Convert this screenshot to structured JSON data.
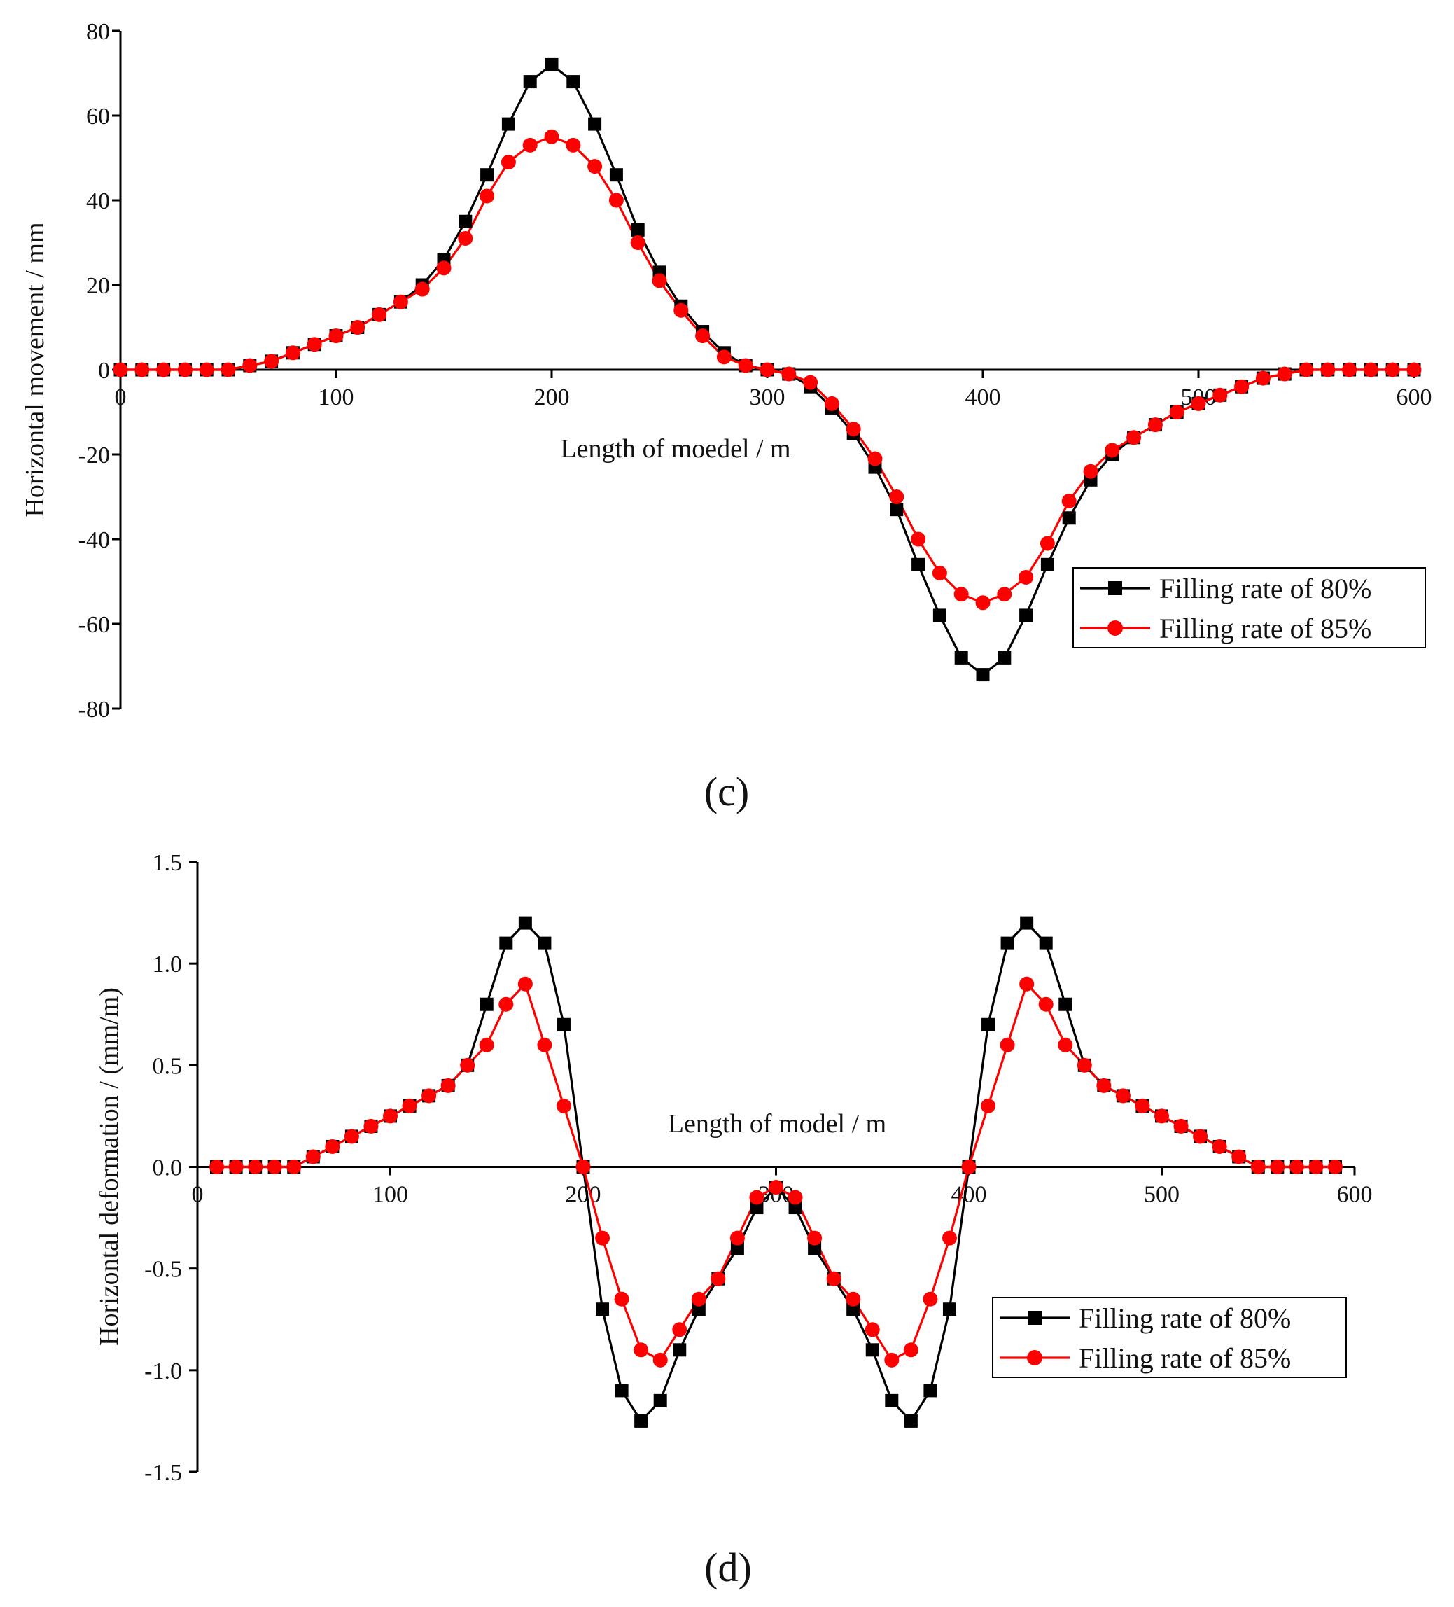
{
  "colors": {
    "series_black": "#000000",
    "series_red": "#ff0000",
    "axis": "#000000"
  },
  "chart_data": [
    {
      "type": "line",
      "panel_label": "(c)",
      "title": "",
      "xlabel": "Length of moedel / m",
      "ylabel": "Horizontal movement / mm",
      "xlim": [
        0,
        600
      ],
      "ylim": [
        -80,
        80
      ],
      "xticks": [
        0,
        100,
        200,
        300,
        400,
        500,
        600
      ],
      "yticks": [
        -80,
        -60,
        -40,
        -20,
        0,
        20,
        40,
        60,
        80
      ],
      "legend_position": "bottom-right",
      "x": [
        0,
        10,
        20,
        30,
        40,
        50,
        60,
        70,
        80,
        90,
        100,
        110,
        120,
        130,
        140,
        150,
        160,
        170,
        180,
        190,
        200,
        210,
        220,
        230,
        240,
        250,
        260,
        270,
        280,
        290,
        300,
        310,
        320,
        330,
        340,
        350,
        360,
        370,
        380,
        390,
        400,
        410,
        420,
        430,
        440,
        450,
        460,
        470,
        480,
        490,
        500,
        510,
        520,
        530,
        540,
        550,
        560,
        570,
        580,
        590,
        600
      ],
      "series": [
        {
          "name": "Filling rate of 80%",
          "marker": "square",
          "color": "#000000",
          "values": [
            0,
            0,
            0,
            0,
            0,
            0,
            1,
            2,
            4,
            6,
            8,
            10,
            13,
            16,
            20,
            26,
            35,
            46,
            58,
            68,
            72,
            68,
            58,
            46,
            33,
            23,
            15,
            9,
            4,
            1,
            0,
            -1,
            -4,
            -9,
            -15,
            -23,
            -33,
            -46,
            -58,
            -68,
            -72,
            -68,
            -58,
            -46,
            -35,
            -26,
            -20,
            -16,
            -13,
            -10,
            -8,
            -6,
            -4,
            -2,
            -1,
            0,
            0,
            0,
            0,
            0,
            0
          ]
        },
        {
          "name": "Filling rate of 85%",
          "marker": "circle",
          "color": "#ff0000",
          "values": [
            0,
            0,
            0,
            0,
            0,
            0,
            1,
            2,
            4,
            6,
            8,
            10,
            13,
            16,
            19,
            24,
            31,
            41,
            49,
            53,
            55,
            53,
            48,
            40,
            30,
            21,
            14,
            8,
            3,
            1,
            0,
            -1,
            -3,
            -8,
            -14,
            -21,
            -30,
            -40,
            -48,
            -53,
            -55,
            -53,
            -49,
            -41,
            -31,
            -24,
            -19,
            -16,
            -13,
            -10,
            -8,
            -6,
            -4,
            -2,
            -1,
            0,
            0,
            0,
            0,
            0,
            0
          ]
        }
      ]
    },
    {
      "type": "line",
      "panel_label": "(d)",
      "title": "",
      "xlabel": "Length of model / m",
      "ylabel": "Horizontal deformation / (mm/m)",
      "xlim": [
        0,
        600
      ],
      "ylim": [
        -1.5,
        1.5
      ],
      "xticks": [
        0,
        100,
        200,
        300,
        400,
        500,
        600
      ],
      "yticks": [
        -1.5,
        -1.0,
        -0.5,
        0.0,
        0.5,
        1.0,
        1.5
      ],
      "legend_position": "bottom-right",
      "x": [
        10,
        20,
        30,
        40,
        50,
        60,
        70,
        80,
        90,
        100,
        110,
        120,
        130,
        140,
        150,
        160,
        170,
        180,
        190,
        200,
        210,
        220,
        230,
        240,
        250,
        260,
        270,
        280,
        290,
        300,
        310,
        320,
        330,
        340,
        350,
        360,
        370,
        380,
        390,
        400,
        410,
        420,
        430,
        440,
        450,
        460,
        470,
        480,
        490,
        500,
        510,
        520,
        530,
        540,
        550,
        560,
        570,
        580,
        590
      ],
      "series": [
        {
          "name": "Filling rate of  80%",
          "marker": "square",
          "color": "#000000",
          "values": [
            0,
            0,
            0,
            0,
            0,
            0.05,
            0.1,
            0.15,
            0.2,
            0.25,
            0.3,
            0.35,
            0.4,
            0.5,
            0.8,
            1.1,
            1.2,
            1.1,
            0.7,
            0,
            -0.7,
            -1.1,
            -1.25,
            -1.15,
            -0.9,
            -0.7,
            -0.55,
            -0.4,
            -0.2,
            -0.1,
            -0.2,
            -0.4,
            -0.55,
            -0.7,
            -0.9,
            -1.15,
            -1.25,
            -1.1,
            -0.7,
            0,
            0.7,
            1.1,
            1.2,
            1.1,
            0.8,
            0.5,
            0.4,
            0.35,
            0.3,
            0.25,
            0.2,
            0.15,
            0.1,
            0.05,
            0,
            0,
            0,
            0,
            0
          ]
        },
        {
          "name": "Filling rate of  85%",
          "marker": "circle",
          "color": "#ff0000",
          "values": [
            0,
            0,
            0,
            0,
            0,
            0.05,
            0.1,
            0.15,
            0.2,
            0.25,
            0.3,
            0.35,
            0.4,
            0.5,
            0.6,
            0.8,
            0.9,
            0.6,
            0.3,
            0,
            -0.35,
            -0.65,
            -0.9,
            -0.95,
            -0.8,
            -0.65,
            -0.55,
            -0.35,
            -0.15,
            -0.1,
            -0.15,
            -0.35,
            -0.55,
            -0.65,
            -0.8,
            -0.95,
            -0.9,
            -0.65,
            -0.35,
            0,
            0.3,
            0.6,
            0.9,
            0.8,
            0.6,
            0.5,
            0.4,
            0.35,
            0.3,
            0.25,
            0.2,
            0.15,
            0.1,
            0.05,
            0,
            0,
            0,
            0,
            0
          ]
        }
      ]
    }
  ]
}
